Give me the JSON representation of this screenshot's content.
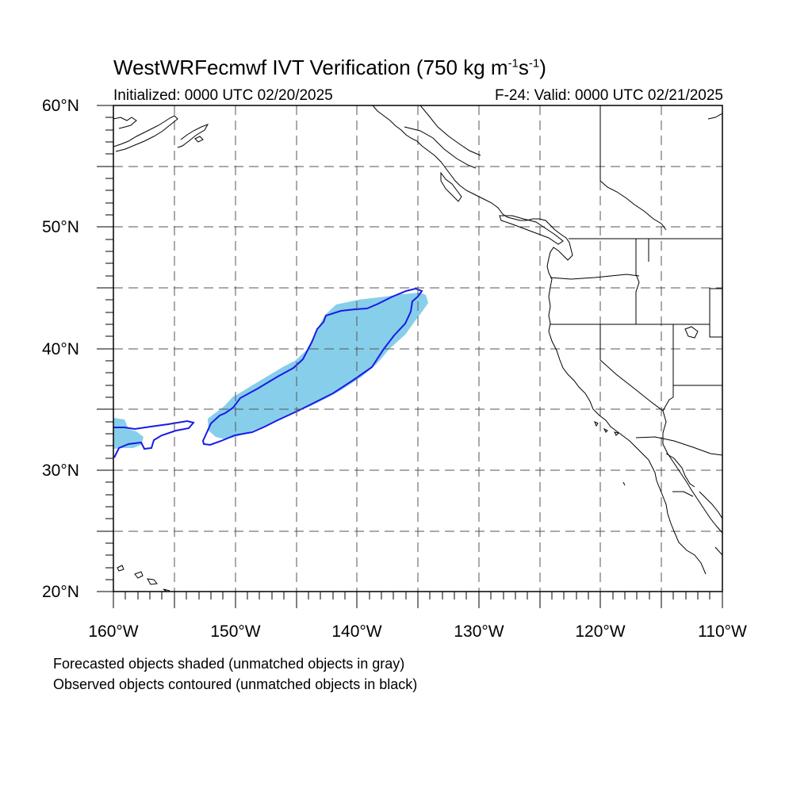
{
  "title": {
    "model": "WestWRFecmwf",
    "name": "IVT Verification",
    "threshold": "750",
    "units_prefix": "kg m",
    "exp1": "-1",
    "units_mid": "s",
    "exp2": "-1"
  },
  "subtitle": {
    "initialized": "Initialized: 0000 UTC 02/20/2025",
    "valid": "F-24: Valid: 0000 UTC 02/21/2025"
  },
  "map": {
    "lat_range": [
      20,
      60
    ],
    "lon_range": [
      -160,
      -110
    ],
    "grid": "dashed every 5 degrees",
    "lat_labels": [
      "60°N",
      "50°N",
      "40°N",
      "30°N",
      "20°N"
    ],
    "lon_labels": [
      "160°W",
      "150°W",
      "140°W",
      "130°W",
      "120°W",
      "110°W"
    ],
    "colors": {
      "forecast_fill": "#87CEEB",
      "observed_contour": "#1a1ae6",
      "coastline": "#000000",
      "grid": "#555555"
    }
  },
  "legend": {
    "forecast": "Forecasted objects shaded (unmatched objects in gray)",
    "observed": "Observed objects contoured (unmatched objects in black)"
  }
}
